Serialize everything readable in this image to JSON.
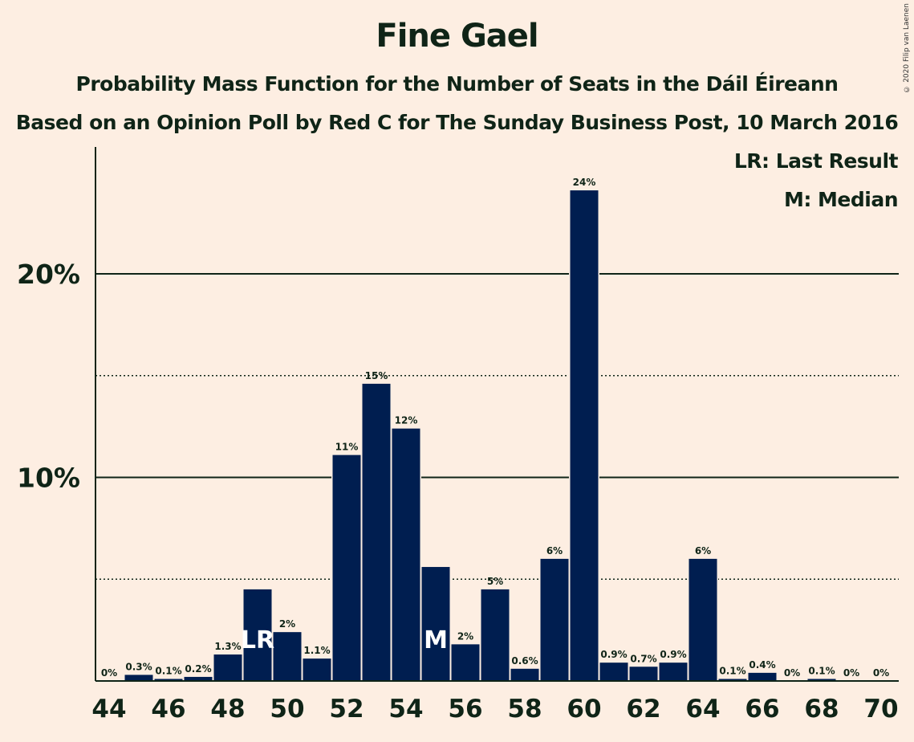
{
  "chart_data": {
    "type": "bar",
    "title": "Fine Gael",
    "subtitle": "Probability Mass Function for the Number of Seats in the Dáil Éireann",
    "subtitle2": "Based on an Opinion Poll by Red C for The Sunday Business Post, 10 March 2016",
    "copyright": "© 2020 Filip van Laenen",
    "legend": [
      "LR: Last Result",
      "M: Median"
    ],
    "legend_position": "top-right",
    "categories": [
      44,
      45,
      46,
      47,
      48,
      49,
      50,
      51,
      52,
      53,
      54,
      55,
      56,
      57,
      58,
      59,
      60,
      61,
      62,
      63,
      64,
      65,
      66,
      67,
      68,
      69,
      70
    ],
    "values": [
      0,
      0.3,
      0.1,
      0.2,
      1.3,
      4.5,
      2.4,
      1.1,
      11.1,
      14.6,
      12.4,
      5.6,
      1.8,
      4.5,
      0.6,
      6.0,
      24.1,
      0.9,
      0.7,
      0.9,
      6.0,
      0.1,
      0.4,
      0,
      0.1,
      0,
      0
    ],
    "data_labels": [
      "0%",
      "0.3%",
      "0.1%",
      "0.2%",
      "1.3%",
      "4%",
      "2%",
      "1.1%",
      "11%",
      "15%",
      "12%",
      "6%",
      "2%",
      "5%",
      "0.6%",
      "6%",
      "24%",
      "0.9%",
      "0.7%",
      "0.9%",
      "6%",
      "0.1%",
      "0.4%",
      "0%",
      "0.1%",
      "0%",
      "0%"
    ],
    "hidden_data_labels": [
      49,
      55
    ],
    "x_tick_labels": [
      "44",
      "46",
      "48",
      "50",
      "52",
      "54",
      "56",
      "58",
      "60",
      "62",
      "64",
      "66",
      "68",
      "70"
    ],
    "y_ticks": [
      {
        "value": 10,
        "label": "10%"
      },
      {
        "value": 20,
        "label": "20%"
      }
    ],
    "y_minor_gridlines": [
      5,
      15
    ],
    "ylim": [
      0,
      26.3
    ],
    "markers": [
      {
        "seat": 49,
        "text": "LR"
      },
      {
        "seat": 55,
        "text": "M"
      }
    ],
    "colors": {
      "bar": "#001e50",
      "background": "#fdeee2",
      "text": "#0f2417",
      "marker_text": "#ffffff"
    }
  }
}
